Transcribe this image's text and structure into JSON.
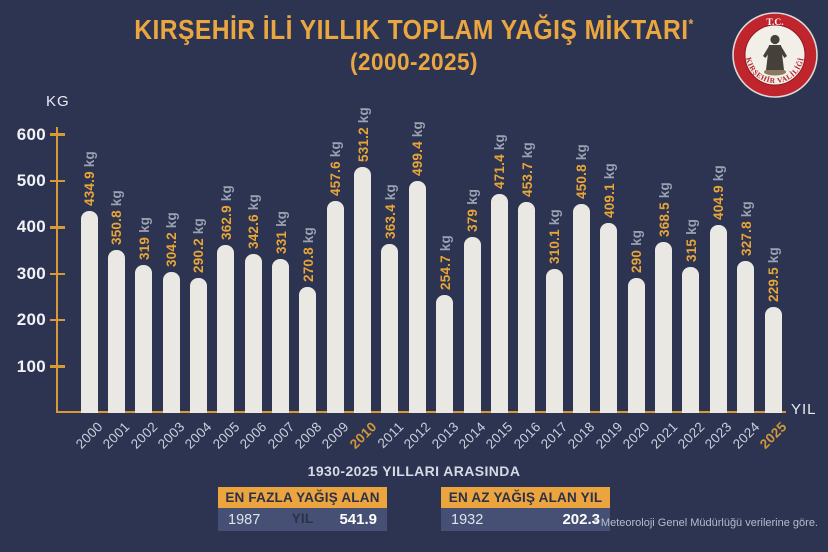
{
  "header": {
    "title": "KIRŞEHİR İLİ YILLIK TOPLAM YAĞIŞ MİKTARI",
    "title_asterisk": "*",
    "subtitle": "(2000-2025)",
    "logo": {
      "top_text": "T.C.",
      "arc_text": "KIRŞEHİR VALİLİĞİ"
    }
  },
  "chart_data": {
    "type": "bar",
    "title": "KIRŞEHİR İLİ YILLIK TOPLAM YAĞIŞ MİKTARI (2000-2025)",
    "xlabel": "YIL",
    "ylabel": "KG",
    "unit": "kg",
    "ylim": [
      0,
      600
    ],
    "yticks": [
      100,
      200,
      300,
      400,
      500,
      600
    ],
    "grid": false,
    "categories": [
      "2000",
      "2001",
      "2002",
      "2003",
      "2004",
      "2005",
      "2006",
      "2007",
      "2008",
      "2009",
      "2010",
      "2011",
      "2012",
      "2013",
      "2014",
      "2015",
      "2016",
      "2017",
      "2018",
      "2019",
      "2020",
      "2021",
      "2022",
      "2023",
      "2024",
      "2025"
    ],
    "values": [
      434.9,
      350.8,
      319,
      304.2,
      290.2,
      362.9,
      342.6,
      331,
      270.8,
      457.6,
      531.2,
      363.4,
      499.4,
      254.7,
      379,
      471.4,
      453.7,
      310.1,
      450.8,
      409.1,
      290,
      368.5,
      315,
      404.9,
      327.8,
      229.5
    ],
    "highlighted_years": [
      "2010",
      "2025"
    ],
    "colors": {
      "background": "#2d3452",
      "bar": "#eae8e2",
      "axis_gold": "#d89a35",
      "accent_gold": "#eba73f",
      "value_label": "#e8a538",
      "unit_gray": "#9aa1b0",
      "year_label": "#c9cfdc",
      "logo_red": "#c0242c"
    }
  },
  "footer": {
    "range_label": "1930-2025 YILLARI ARASINDA",
    "cards": [
      {
        "title": "EN FAZLA YAĞIŞ ALAN YIL",
        "year": "1987",
        "value": "541.9"
      },
      {
        "title": "EN AZ YAĞIŞ ALAN YIL",
        "year": "1932",
        "value": "202.3"
      }
    ],
    "footnote": "* Meteoroloji Genel Müdürlüğü verilerine göre."
  }
}
